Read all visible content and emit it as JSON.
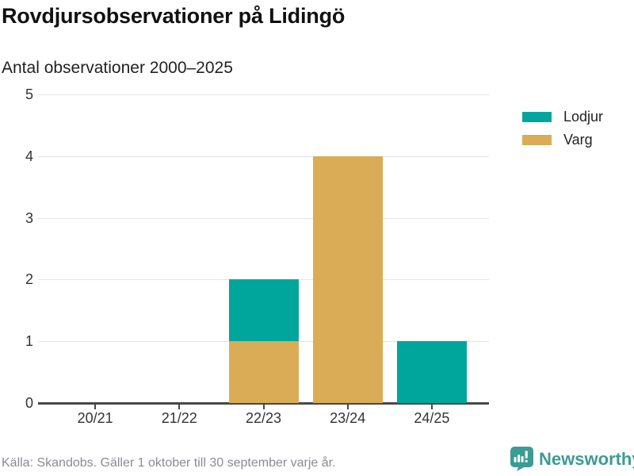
{
  "header": {
    "title": "Rovdjursobservationer på Lidingö",
    "subtitle": "Antal observationer 2000–2025"
  },
  "chart_data": {
    "type": "bar",
    "stacked": true,
    "categories": [
      "20/21",
      "21/22",
      "22/23",
      "23/24",
      "24/25"
    ],
    "series": [
      {
        "name": "Lodjur",
        "color": "#00a69c",
        "values": [
          0,
          0,
          1,
          0,
          1
        ]
      },
      {
        "name": "Varg",
        "color": "#d9ac55",
        "values": [
          0,
          0,
          1,
          4,
          0
        ]
      }
    ],
    "stack_bottom_to_top": [
      "Varg",
      "Lodjur"
    ],
    "title": "Rovdjursobservationer på Lidingö",
    "subtitle": "Antal observationer 2000–2025",
    "xlabel": "",
    "ylabel": "",
    "ylim": [
      0,
      5
    ],
    "yticks": [
      0,
      1,
      2,
      3,
      4,
      5
    ],
    "grid": true,
    "legend_position": "right-top"
  },
  "footer": {
    "source": "Källa: Skandobs. Gäller 1 oktober till 30 september varje år."
  },
  "brand": {
    "name": "Newsworthy",
    "icon": "speech-bubble-bar-chart-exclamation",
    "color": "#3b9c94"
  },
  "colors": {
    "teal": "#00a69c",
    "gold": "#d9ac55",
    "brand_teal": "#3b9c94",
    "grid": "#e4e4e4",
    "axis": "#474747",
    "text_dark": "#111111",
    "text_body": "#222222",
    "text_axis": "#333333",
    "text_muted": "#8b8b94"
  }
}
